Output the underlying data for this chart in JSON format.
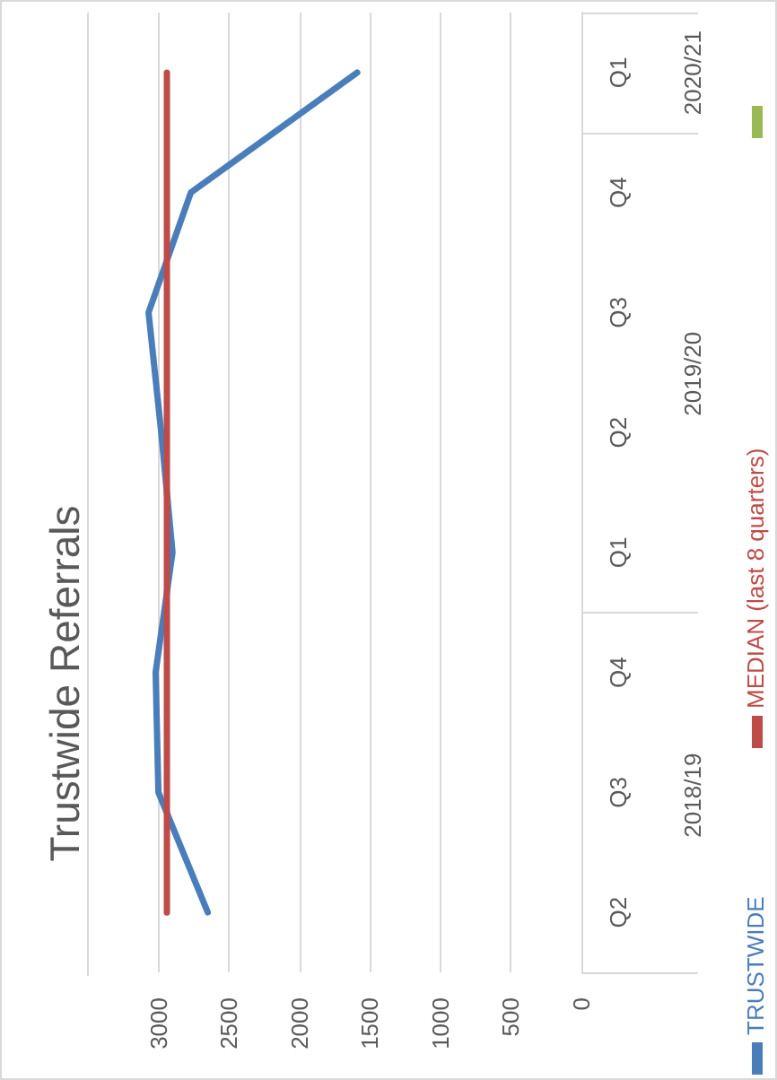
{
  "chart_data": {
    "type": "line",
    "title": "Trustwide Referrals",
    "orientation": "horizontal",
    "categories": [
      "Q1",
      "Q4",
      "Q3",
      "Q2",
      "Q1",
      "Q4",
      "Q3",
      "Q2"
    ],
    "annotations": [
      "2020/21",
      "2019/20",
      "2018/19"
    ],
    "series": [
      {
        "name": "TRUSTWIDE",
        "color": "#4a7ebb",
        "values": [
          1590,
          2770,
          3070,
          2980,
          2900,
          3020,
          3000,
          2650
        ]
      },
      {
        "name": "MEDIAN (last 8 quarters)",
        "color": "#be4b48",
        "values": [
          2940,
          2940,
          2940,
          2940,
          2940,
          2940,
          2940,
          2940
        ]
      },
      {
        "color": "#98b954",
        "values": [
          null,
          null,
          null,
          null,
          null,
          null,
          null,
          null
        ]
      }
    ],
    "xlim": [
      3500,
      0
    ],
    "xticks": [
      3000,
      2500,
      2000,
      1500,
      1000,
      500,
      0
    ],
    "grid": "x",
    "legend": "right",
    "marker": "none",
    "line_style": "solid"
  }
}
